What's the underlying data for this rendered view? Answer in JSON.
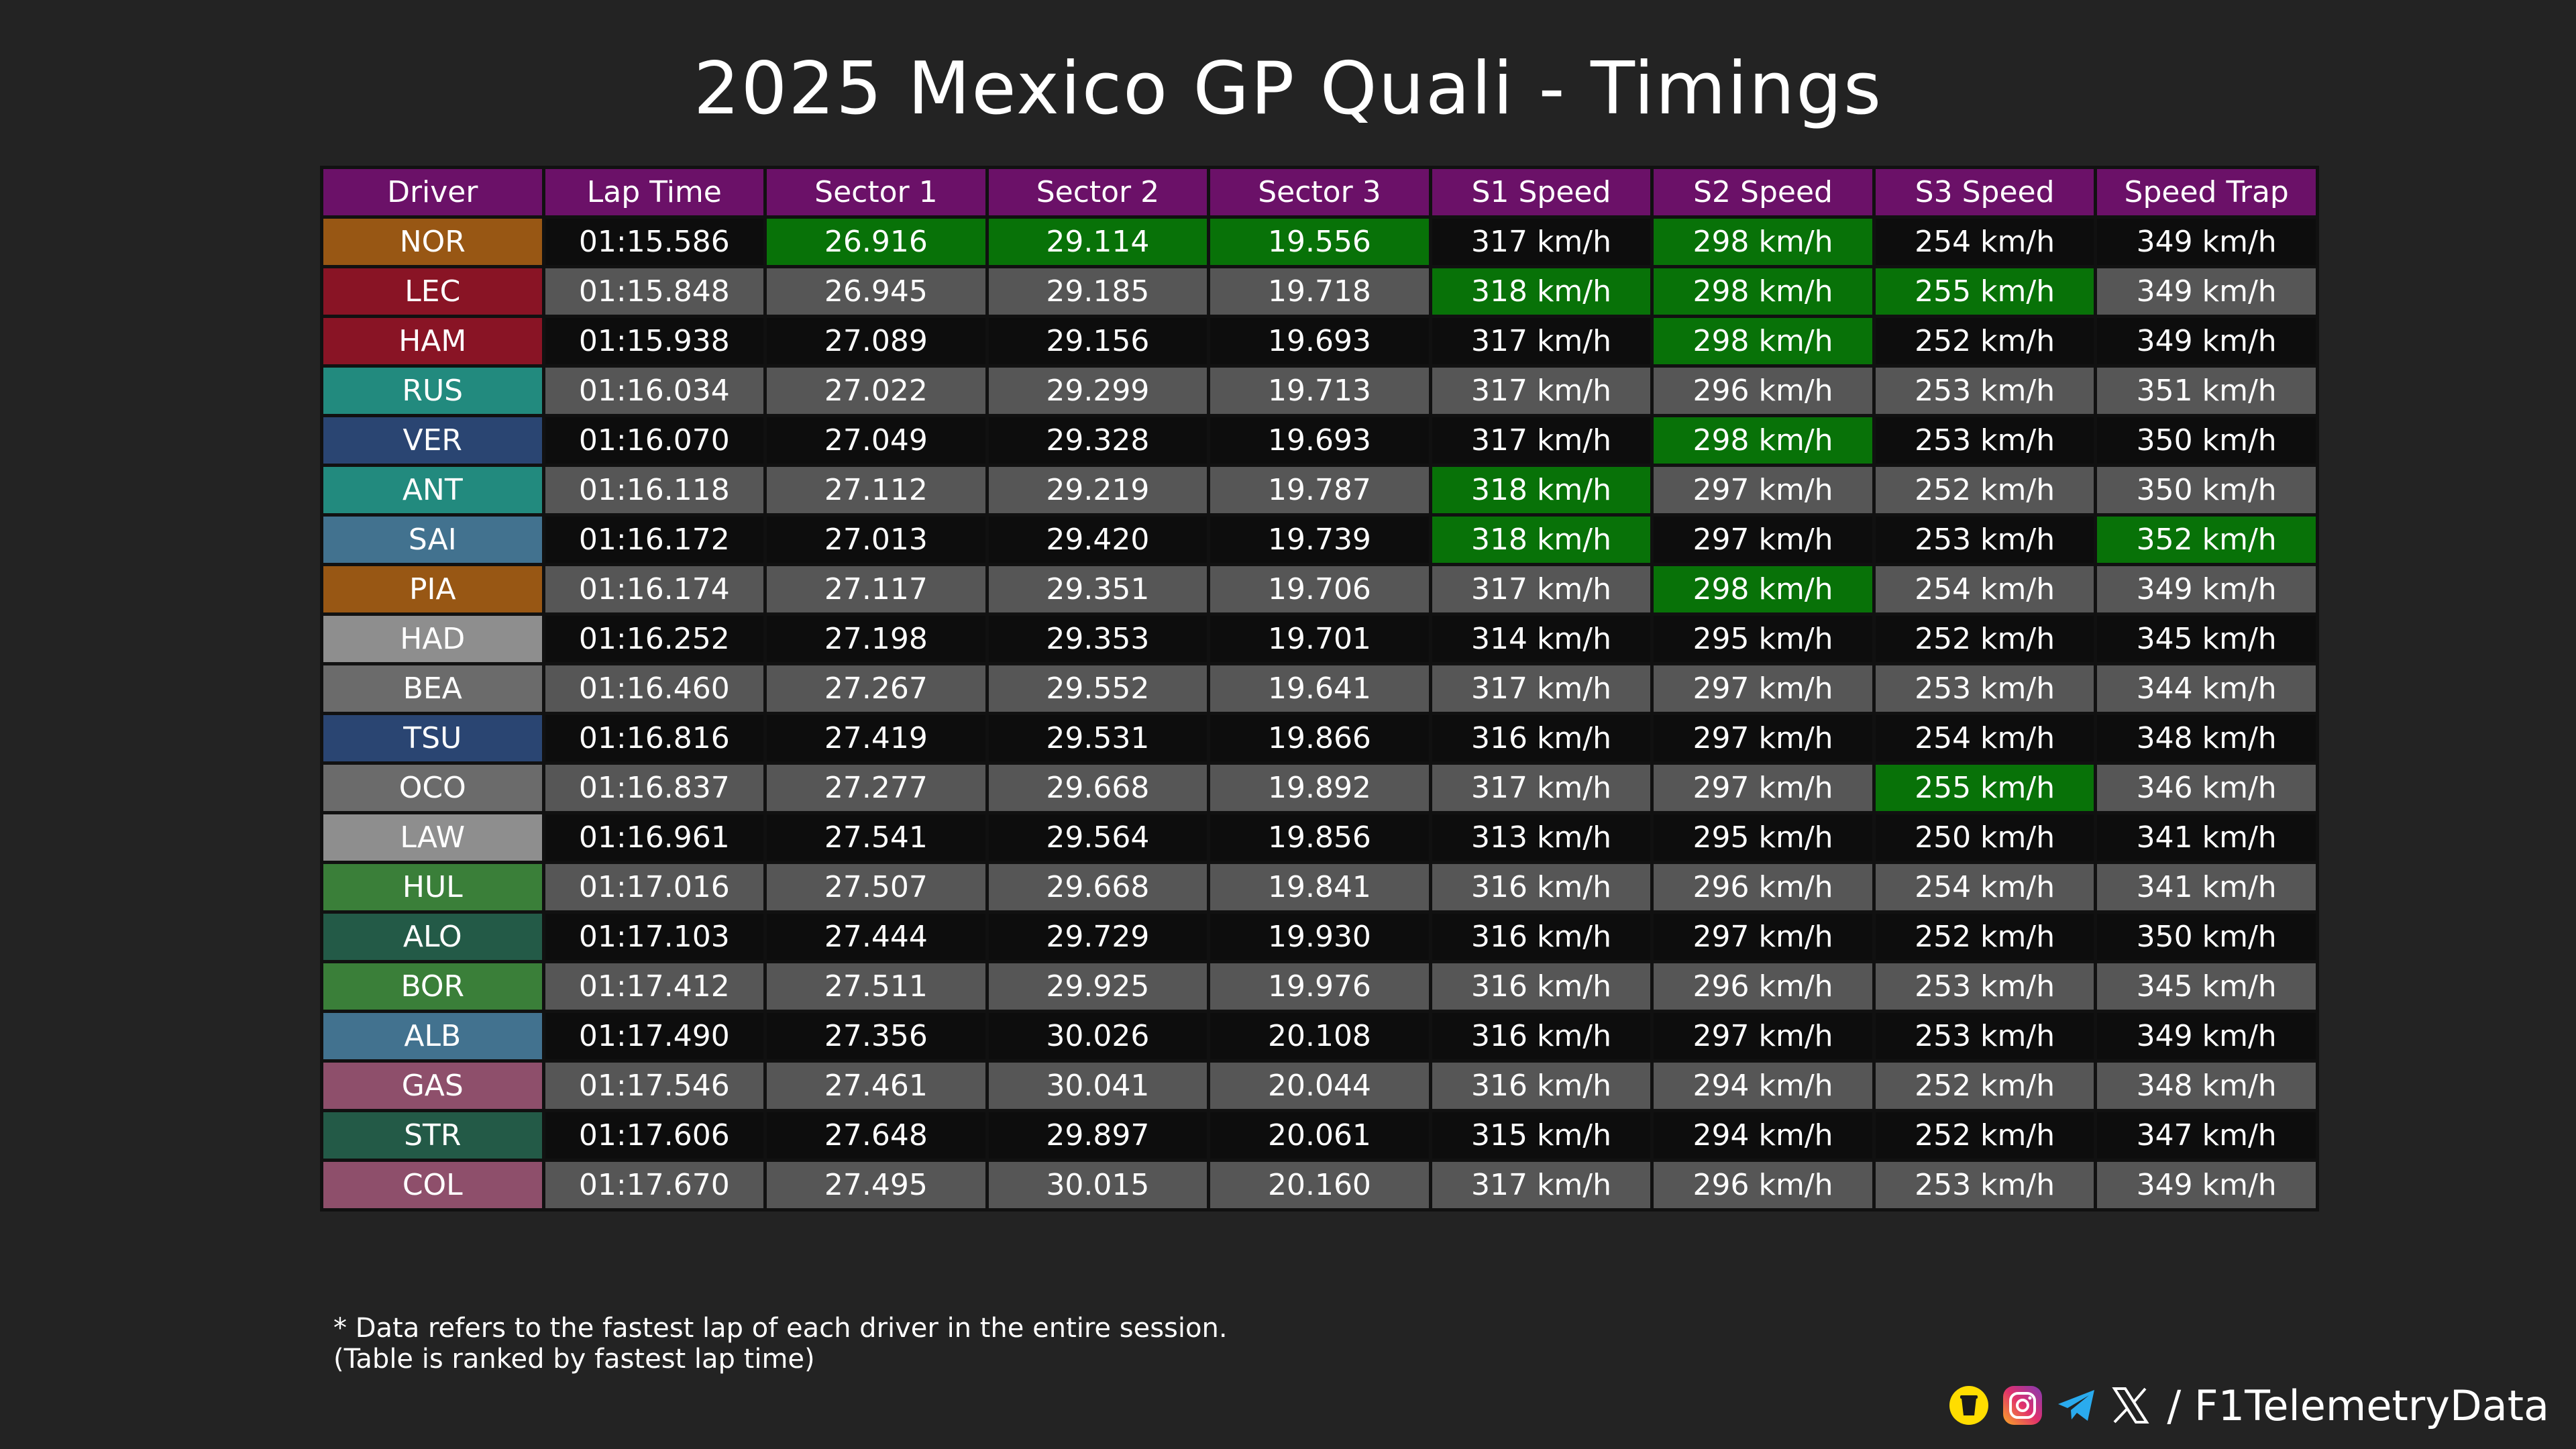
{
  "title": "2025 Mexico GP Quali - Timings",
  "watermark": "@F1TelemetryData",
  "colors": {
    "header_bg": "#6b1168",
    "row_dark": "#0d0d0d",
    "row_gray": "#565656",
    "best_green": "#087208",
    "background": "#232323"
  },
  "chart_data": {
    "type": "table",
    "columns": [
      "Driver",
      "Lap Time",
      "Sector 1",
      "Sector 2",
      "Sector 3",
      "S1 Speed",
      "S2 Speed",
      "S3 Speed",
      "Speed Trap"
    ],
    "rows": [
      {
        "driver": "NOR",
        "team_color": "#985714",
        "cells": [
          "01:15.586",
          "26.916",
          "29.114",
          "19.556",
          "317 km/h",
          "298 km/h",
          "254 km/h",
          "349 km/h"
        ],
        "best": [
          false,
          true,
          true,
          true,
          false,
          true,
          false,
          false
        ]
      },
      {
        "driver": "LEC",
        "team_color": "#891425",
        "cells": [
          "01:15.848",
          "26.945",
          "29.185",
          "19.718",
          "318 km/h",
          "298 km/h",
          "255 km/h",
          "349 km/h"
        ],
        "best": [
          false,
          false,
          false,
          false,
          true,
          true,
          true,
          false
        ]
      },
      {
        "driver": "HAM",
        "team_color": "#891425",
        "cells": [
          "01:15.938",
          "27.089",
          "29.156",
          "19.693",
          "317 km/h",
          "298 km/h",
          "252 km/h",
          "349 km/h"
        ],
        "best": [
          false,
          false,
          false,
          false,
          false,
          true,
          false,
          false
        ]
      },
      {
        "driver": "RUS",
        "team_color": "#228a7e",
        "cells": [
          "01:16.034",
          "27.022",
          "29.299",
          "19.713",
          "317 km/h",
          "296 km/h",
          "253 km/h",
          "351 km/h"
        ],
        "best": [
          false,
          false,
          false,
          false,
          false,
          false,
          false,
          false
        ]
      },
      {
        "driver": "VER",
        "team_color": "#2a4572",
        "cells": [
          "01:16.070",
          "27.049",
          "29.328",
          "19.693",
          "317 km/h",
          "298 km/h",
          "253 km/h",
          "350 km/h"
        ],
        "best": [
          false,
          false,
          false,
          false,
          false,
          true,
          false,
          false
        ]
      },
      {
        "driver": "ANT",
        "team_color": "#228a7e",
        "cells": [
          "01:16.118",
          "27.112",
          "29.219",
          "19.787",
          "318 km/h",
          "297 km/h",
          "252 km/h",
          "350 km/h"
        ],
        "best": [
          false,
          false,
          false,
          false,
          true,
          false,
          false,
          false
        ]
      },
      {
        "driver": "SAI",
        "team_color": "#42728f",
        "cells": [
          "01:16.172",
          "27.013",
          "29.420",
          "19.739",
          "318 km/h",
          "297 km/h",
          "253 km/h",
          "352 km/h"
        ],
        "best": [
          false,
          false,
          false,
          false,
          true,
          false,
          false,
          true
        ]
      },
      {
        "driver": "PIA",
        "team_color": "#985714",
        "cells": [
          "01:16.174",
          "27.117",
          "29.351",
          "19.706",
          "317 km/h",
          "298 km/h",
          "254 km/h",
          "349 km/h"
        ],
        "best": [
          false,
          false,
          false,
          false,
          false,
          true,
          false,
          false
        ]
      },
      {
        "driver": "HAD",
        "team_color": "#8e8e8e",
        "cells": [
          "01:16.252",
          "27.198",
          "29.353",
          "19.701",
          "314 km/h",
          "295 km/h",
          "252 km/h",
          "345 km/h"
        ],
        "best": [
          false,
          false,
          false,
          false,
          false,
          false,
          false,
          false
        ]
      },
      {
        "driver": "BEA",
        "team_color": "#6b6b6b",
        "cells": [
          "01:16.460",
          "27.267",
          "29.552",
          "19.641",
          "317 km/h",
          "297 km/h",
          "253 km/h",
          "344 km/h"
        ],
        "best": [
          false,
          false,
          false,
          false,
          false,
          false,
          false,
          false
        ]
      },
      {
        "driver": "TSU",
        "team_color": "#2a4572",
        "cells": [
          "01:16.816",
          "27.419",
          "29.531",
          "19.866",
          "316 km/h",
          "297 km/h",
          "254 km/h",
          "348 km/h"
        ],
        "best": [
          false,
          false,
          false,
          false,
          false,
          false,
          false,
          false
        ]
      },
      {
        "driver": "OCO",
        "team_color": "#6b6b6b",
        "cells": [
          "01:16.837",
          "27.277",
          "29.668",
          "19.892",
          "317 km/h",
          "297 km/h",
          "255 km/h",
          "346 km/h"
        ],
        "best": [
          false,
          false,
          false,
          false,
          false,
          false,
          true,
          false
        ]
      },
      {
        "driver": "LAW",
        "team_color": "#8e8e8e",
        "cells": [
          "01:16.961",
          "27.541",
          "29.564",
          "19.856",
          "313 km/h",
          "295 km/h",
          "250 km/h",
          "341 km/h"
        ],
        "best": [
          false,
          false,
          false,
          false,
          false,
          false,
          false,
          false
        ]
      },
      {
        "driver": "HUL",
        "team_color": "#3a7f39",
        "cells": [
          "01:17.016",
          "27.507",
          "29.668",
          "19.841",
          "316 km/h",
          "296 km/h",
          "254 km/h",
          "341 km/h"
        ],
        "best": [
          false,
          false,
          false,
          false,
          false,
          false,
          false,
          false
        ]
      },
      {
        "driver": "ALO",
        "team_color": "#235a47",
        "cells": [
          "01:17.103",
          "27.444",
          "29.729",
          "19.930",
          "316 km/h",
          "297 km/h",
          "252 km/h",
          "350 km/h"
        ],
        "best": [
          false,
          false,
          false,
          false,
          false,
          false,
          false,
          false
        ]
      },
      {
        "driver": "BOR",
        "team_color": "#3a7f39",
        "cells": [
          "01:17.412",
          "27.511",
          "29.925",
          "19.976",
          "316 km/h",
          "296 km/h",
          "253 km/h",
          "345 km/h"
        ],
        "best": [
          false,
          false,
          false,
          false,
          false,
          false,
          false,
          false
        ]
      },
      {
        "driver": "ALB",
        "team_color": "#42728f",
        "cells": [
          "01:17.490",
          "27.356",
          "30.026",
          "20.108",
          "316 km/h",
          "297 km/h",
          "253 km/h",
          "349 km/h"
        ],
        "best": [
          false,
          false,
          false,
          false,
          false,
          false,
          false,
          false
        ]
      },
      {
        "driver": "GAS",
        "team_color": "#8e4f6b",
        "cells": [
          "01:17.546",
          "27.461",
          "30.041",
          "20.044",
          "316 km/h",
          "294 km/h",
          "252 km/h",
          "348 km/h"
        ],
        "best": [
          false,
          false,
          false,
          false,
          false,
          false,
          false,
          false
        ]
      },
      {
        "driver": "STR",
        "team_color": "#235a47",
        "cells": [
          "01:17.606",
          "27.648",
          "29.897",
          "20.061",
          "315 km/h",
          "294 km/h",
          "252 km/h",
          "347 km/h"
        ],
        "best": [
          false,
          false,
          false,
          false,
          false,
          false,
          false,
          false
        ]
      },
      {
        "driver": "COL",
        "team_color": "#8e4f6b",
        "cells": [
          "01:17.670",
          "27.495",
          "30.015",
          "20.160",
          "317 km/h",
          "296 km/h",
          "253 km/h",
          "349 km/h"
        ],
        "best": [
          false,
          false,
          false,
          false,
          false,
          false,
          false,
          false
        ]
      }
    ]
  },
  "footnote": {
    "line1": "* Data refers to the fastest lap of each driver in the entire session.",
    "line2": "(Table is ranked by fastest lap time)"
  },
  "social": {
    "icons": [
      "buymeacoffee-icon",
      "instagram-icon",
      "telegram-icon",
      "x-icon"
    ],
    "handle": "/ F1TelemetryData"
  }
}
